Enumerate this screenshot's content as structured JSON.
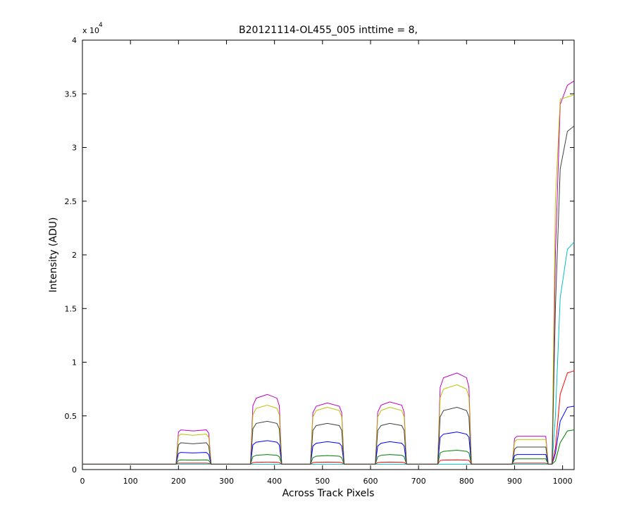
{
  "chart_data": {
    "type": "line",
    "title": "B20121114-OL455_005 inttime = 8,",
    "x_label": "Across Track Pixels",
    "y_label": "Intensity (ADU)",
    "y_multiplier": {
      "base": "x 10",
      "exponent": "4"
    },
    "xlim": [
      0,
      1024
    ],
    "ylim": [
      0,
      40000
    ],
    "xticks": [
      0,
      100,
      200,
      300,
      400,
      500,
      600,
      700,
      800,
      900,
      1000
    ],
    "yticks": [
      {
        "value": 0,
        "label": "0"
      },
      {
        "value": 5000,
        "label": "0.5"
      },
      {
        "value": 10000,
        "label": "1"
      },
      {
        "value": 15000,
        "label": "1.5"
      },
      {
        "value": 20000,
        "label": "2"
      },
      {
        "value": 25000,
        "label": "2.5"
      },
      {
        "value": 30000,
        "label": "3"
      },
      {
        "value": 35000,
        "label": "3.5"
      },
      {
        "value": 40000,
        "label": "4"
      }
    ],
    "grid": false,
    "x": [
      0,
      195,
      200,
      205,
      230,
      258,
      263,
      268,
      350,
      355,
      362,
      385,
      405,
      410,
      415,
      475,
      480,
      487,
      510,
      535,
      540,
      545,
      610,
      615,
      622,
      640,
      665,
      670,
      675,
      740,
      745,
      752,
      780,
      800,
      805,
      810,
      895,
      900,
      905,
      930,
      965,
      970,
      978,
      985,
      995,
      1010,
      1024
    ],
    "series": [
      {
        "color": "#0000ff",
        "values": [
          500,
          500,
          1500,
          1600,
          1550,
          1600,
          1400,
          500,
          500,
          2300,
          2550,
          2700,
          2550,
          2300,
          500,
          500,
          2200,
          2450,
          2600,
          2450,
          2200,
          500,
          500,
          2200,
          2450,
          2600,
          2450,
          2200,
          500,
          500,
          3000,
          3300,
          3500,
          3300,
          3000,
          500,
          500,
          1300,
          1400,
          1400,
          1400,
          500,
          500,
          1500,
          4500,
          5800,
          5900
        ]
      },
      {
        "color": "#008000",
        "values": [
          500,
          500,
          850,
          900,
          880,
          900,
          850,
          500,
          500,
          1200,
          1330,
          1400,
          1330,
          1200,
          500,
          500,
          1100,
          1250,
          1300,
          1250,
          1100,
          500,
          500,
          1200,
          1330,
          1400,
          1330,
          1200,
          500,
          500,
          1550,
          1700,
          1800,
          1700,
          1550,
          500,
          500,
          950,
          1000,
          1000,
          1000,
          500,
          500,
          800,
          2500,
          3600,
          3700
        ]
      },
      {
        "color": "#ff0000",
        "values": [
          500,
          500,
          600,
          600,
          600,
          600,
          580,
          500,
          500,
          650,
          680,
          700,
          680,
          650,
          500,
          500,
          650,
          680,
          700,
          680,
          650,
          500,
          500,
          650,
          680,
          700,
          680,
          650,
          500,
          500,
          850,
          880,
          900,
          880,
          850,
          500,
          500,
          600,
          600,
          600,
          600,
          500,
          500,
          2000,
          7000,
          9000,
          9200
        ]
      },
      {
        "color": "#00bfbf",
        "values": [
          500,
          500,
          500,
          500,
          500,
          500,
          500,
          500,
          500,
          500,
          500,
          500,
          500,
          500,
          500,
          500,
          500,
          500,
          500,
          500,
          500,
          500,
          500,
          500,
          500,
          500,
          500,
          500,
          500,
          500,
          500,
          500,
          500,
          500,
          500,
          500,
          500,
          500,
          500,
          500,
          500,
          500,
          500,
          5000,
          16000,
          20500,
          21200
        ]
      },
      {
        "color": "#bf00bf",
        "values": [
          500,
          500,
          3500,
          3700,
          3600,
          3700,
          3400,
          500,
          500,
          5950,
          6650,
          7000,
          6650,
          5950,
          500,
          500,
          5300,
          5900,
          6200,
          5900,
          5300,
          500,
          500,
          5350,
          6000,
          6300,
          6000,
          5350,
          500,
          500,
          7650,
          8550,
          9000,
          8550,
          7650,
          500,
          500,
          2900,
          3100,
          3100,
          3100,
          500,
          500,
          20000,
          34000,
          35800,
          36200
        ]
      },
      {
        "color": "#bfbf00",
        "values": [
          500,
          500,
          3100,
          3300,
          3200,
          3300,
          3000,
          500,
          500,
          5100,
          5700,
          6000,
          5700,
          5100,
          500,
          500,
          4900,
          5500,
          5800,
          5500,
          4900,
          500,
          500,
          4900,
          5500,
          5800,
          5500,
          4900,
          500,
          500,
          6700,
          7500,
          7900,
          7500,
          6700,
          500,
          500,
          2600,
          2800,
          2800,
          2800,
          500,
          500,
          25000,
          34500,
          34700,
          34900
        ]
      },
      {
        "color": "#404040",
        "values": [
          500,
          500,
          2300,
          2500,
          2400,
          2500,
          2200,
          500,
          500,
          3800,
          4300,
          4500,
          4300,
          3800,
          500,
          500,
          3650,
          4100,
          4300,
          4100,
          3650,
          500,
          500,
          3650,
          4100,
          4300,
          4100,
          3650,
          500,
          500,
          4900,
          5500,
          5800,
          5500,
          4900,
          500,
          500,
          1900,
          2100,
          2100,
          2100,
          500,
          500,
          15000,
          28000,
          31500,
          32000
        ]
      }
    ]
  }
}
